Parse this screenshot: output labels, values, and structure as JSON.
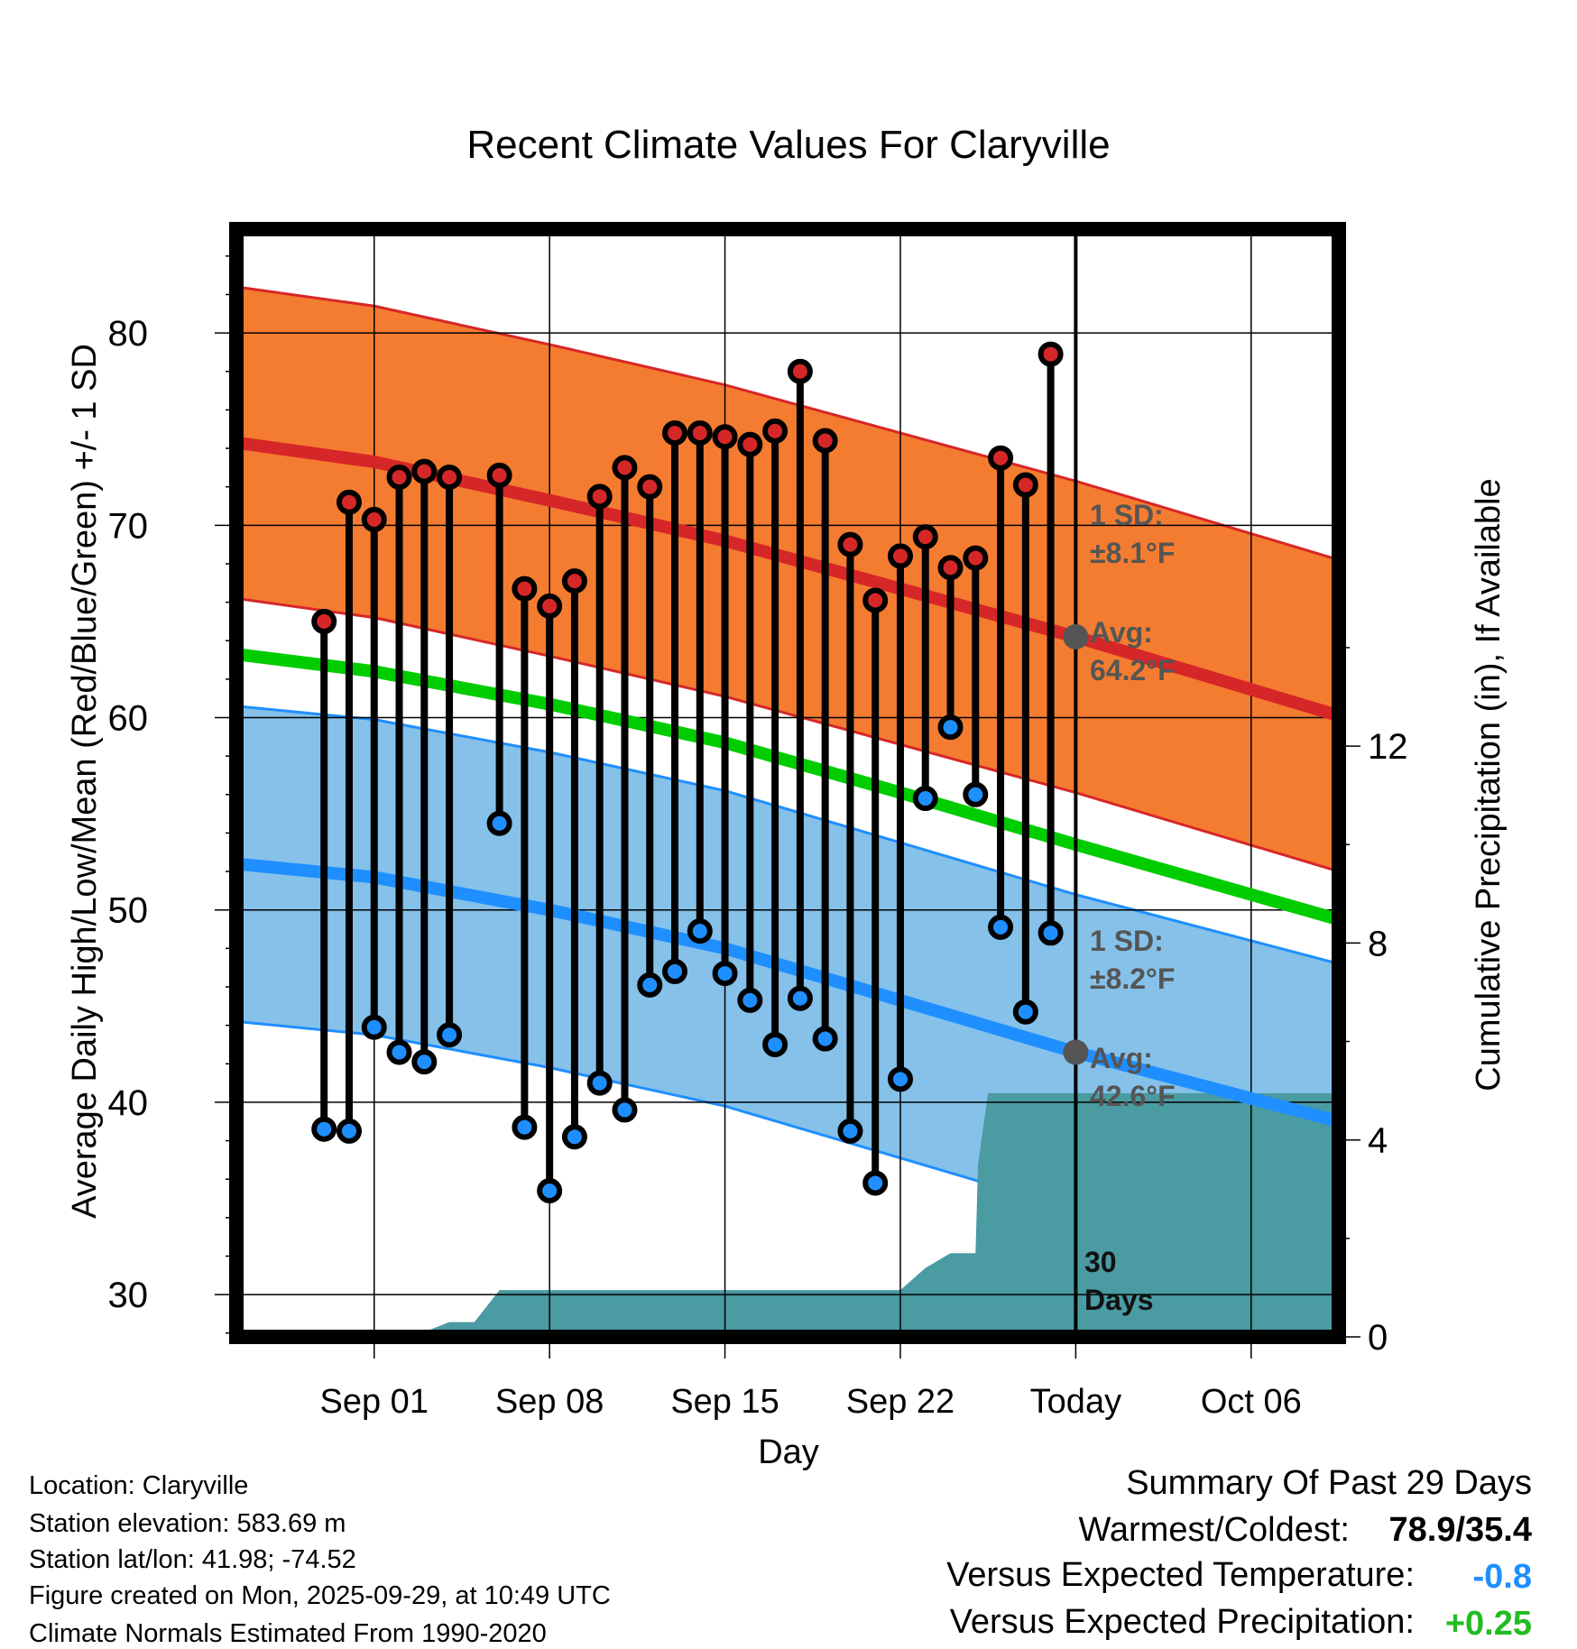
{
  "chart_data": {
    "type": "line",
    "title": "Recent Climate Values For Claryville",
    "xlabel": "Day",
    "ylabel_left": "Average Daily High/Low/Mean (Red/Blue/Green) +/- 1 SD",
    "ylabel_right": "Cumulative Precipitation (in), If Available",
    "x_range_days": [
      -33.5,
      10.5
    ],
    "ylim_left": [
      27.8,
      85.4
    ],
    "ylim_right": [
      0,
      22.5
    ],
    "left_ticks": [
      30,
      40,
      50,
      60,
      70,
      80
    ],
    "left_tick_labels": [
      "30",
      "40",
      "50",
      "60",
      "70",
      "80"
    ],
    "right_ticks": [
      0,
      4,
      8,
      12
    ],
    "right_tick_labels": [
      "0",
      "4",
      "8",
      "12"
    ],
    "x_ticks": [
      {
        "day": -28,
        "label": "Sep 01"
      },
      {
        "day": -21,
        "label": "Sep 08"
      },
      {
        "day": -14,
        "label": "Sep 15"
      },
      {
        "day": -7,
        "label": "Sep 22"
      },
      {
        "day": 0,
        "label": "Today"
      },
      {
        "day": 7,
        "label": "Oct 06"
      }
    ],
    "normals": {
      "high_avg": {
        "x": [
          -33.5,
          -28,
          -21,
          -14,
          -7,
          0,
          10.5
        ],
        "y": [
          74.3,
          73.3,
          71.3,
          69.2,
          66.7,
          64.2,
          60.1
        ]
      },
      "high_sd": 8.1,
      "low_avg": {
        "x": [
          -33.5,
          -28,
          -21,
          -14,
          -7,
          0,
          10.5
        ],
        "y": [
          52.4,
          51.7,
          50.0,
          48.0,
          45.3,
          42.6,
          39.0
        ]
      },
      "low_sd": 8.2,
      "mean": {
        "x": [
          -33.5,
          -28,
          -21,
          -14,
          -7,
          0,
          10.5
        ],
        "y": [
          63.3,
          62.4,
          60.7,
          58.7,
          56.1,
          53.4,
          49.5
        ]
      }
    },
    "series": [
      {
        "name": "High",
        "color": "#d62728",
        "x": [
          -30,
          -29,
          -28,
          -27,
          -26,
          -25,
          -23,
          -22,
          -21,
          -20,
          -19,
          -18,
          -17,
          -16,
          -15,
          -14,
          -13,
          -12,
          -11,
          -10,
          -9,
          -8,
          -7,
          -6,
          -5,
          -4,
          -3,
          -2,
          -1
        ],
        "y": [
          65.0,
          71.2,
          70.3,
          72.5,
          72.8,
          72.5,
          72.6,
          66.7,
          65.8,
          67.1,
          71.5,
          73.0,
          72.0,
          74.8,
          74.8,
          74.6,
          74.2,
          74.9,
          78.0,
          74.4,
          69.0,
          66.1,
          68.4,
          69.4,
          67.8,
          68.3,
          73.5,
          72.1,
          78.9
        ]
      },
      {
        "name": "Low",
        "color": "#1f8fff",
        "x": [
          -30,
          -29,
          -28,
          -27,
          -26,
          -25,
          -23,
          -22,
          -21,
          -20,
          -19,
          -18,
          -17,
          -16,
          -15,
          -14,
          -13,
          -12,
          -11,
          -10,
          -9,
          -8,
          -7,
          -6,
          -5,
          -4,
          -3,
          -2,
          -1
        ],
        "y": [
          38.6,
          38.5,
          43.9,
          42.6,
          42.1,
          43.5,
          54.5,
          38.7,
          35.4,
          38.2,
          41.0,
          39.6,
          46.1,
          46.8,
          48.9,
          46.7,
          45.3,
          43.0,
          45.4,
          43.3,
          38.5,
          35.8,
          41.2,
          55.8,
          59.5,
          56.0,
          49.1,
          44.7,
          48.8
        ]
      },
      {
        "name": "Cumulative Precipitation",
        "color": "#4a9ba2",
        "x": [
          -33.5,
          -27,
          -26.5,
          -25,
          -24,
          -23,
          -22,
          -21,
          -8,
          -7,
          -6,
          -5,
          -4,
          -3.9,
          -3.5,
          -3,
          -2,
          -1,
          0,
          10.5
        ],
        "y": [
          0,
          0,
          0,
          0.3,
          0.3,
          0.95,
          0.95,
          0.95,
          0.95,
          0.95,
          1.4,
          1.7,
          1.7,
          3.5,
          4.95,
          4.95,
          4.95,
          4.95,
          4.95,
          4.95
        ]
      }
    ],
    "annotations": {
      "high_sd": [
        "1 SD:",
        "±8.1°F"
      ],
      "high_avg": [
        "Avg:",
        "64.2°F"
      ],
      "low_sd": [
        "1 SD:",
        "±8.2°F"
      ],
      "low_avg": [
        "Avg:",
        "42.6°F"
      ],
      "days": [
        "30",
        "Days"
      ]
    }
  },
  "info": {
    "lines": [
      "Location: Claryville",
      "Station elevation: 583.69 m",
      "Station lat/lon: 41.98; -74.52",
      "Figure created on Mon, 2025-09-29, at 10:49 UTC",
      "Climate Normals Estimated From 1990-2020"
    ]
  },
  "summary": {
    "title": "Summary Of Past 29 Days",
    "warm_cold_label": "Warmest/Coldest:",
    "warm_cold_value": "78.9/35.4",
    "temp_label": "Versus Expected Temperature:",
    "temp_value": "-0.8",
    "temp_color": "#1f8fff",
    "precip_label": "Versus Expected Precipitation:",
    "precip_value": "+0.25",
    "precip_color": "#22bb22"
  },
  "colors": {
    "high_band": "#f47c30",
    "high_line": "#d62728",
    "low_band": "#85c1e9",
    "low_line": "#1f8fff",
    "mean_line": "#00cc00",
    "precip": "#4a9ba2",
    "annotation": "#555555"
  }
}
